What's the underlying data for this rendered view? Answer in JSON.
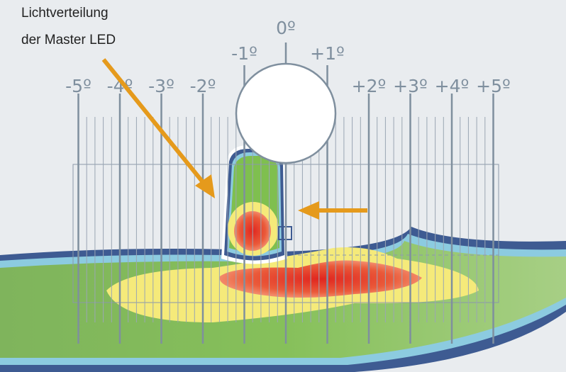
{
  "title": {
    "line1": "Lichtverteilung",
    "line2": "der Master LED"
  },
  "ticks": [
    {
      "label": "-5º",
      "deg": -5
    },
    {
      "label": "-4º",
      "deg": -4
    },
    {
      "label": "-3º",
      "deg": -3
    },
    {
      "label": "-2º",
      "deg": -2
    },
    {
      "label": "-1º",
      "deg": -1
    },
    {
      "label": "0º",
      "deg": 0
    },
    {
      "label": "+1º",
      "deg": 1
    },
    {
      "label": "+2º",
      "deg": 2
    },
    {
      "label": "+3º",
      "deg": 3
    },
    {
      "label": "+4º",
      "deg": 4
    },
    {
      "label": "+5º",
      "deg": 5
    }
  ],
  "colors": {
    "background": "#e9ecef",
    "arrow": "#e59a1c",
    "road_green": "#8fc46a",
    "hot": "#e23a2c",
    "yellow": "#f5ea7a",
    "edge_blue": "#3e5b92",
    "tick": "#7f8f9e"
  }
}
